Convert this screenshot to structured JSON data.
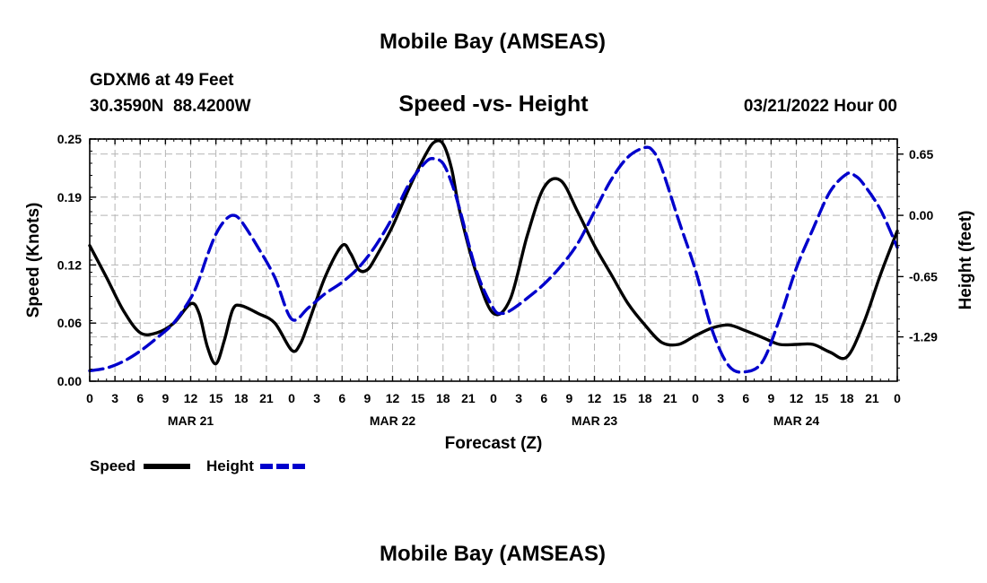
{
  "page": {
    "title": "Mobile Bay (AMSEAS)",
    "station_line": "GDXM6 at 49 Feet",
    "coords_line": "30.3590N  88.4200W",
    "run_time": "03/21/2022 Hour 00",
    "footer_title": "Mobile Bay (AMSEAS)"
  },
  "colors": {
    "speed": "#000000",
    "height": "#0000cc",
    "grid": "#b4b4b4"
  },
  "chart_data": {
    "type": "line",
    "title": "Speed -vs- Height",
    "xlabel": "Forecast (Z)",
    "ylabel": "Speed (Knots)",
    "y2label": "Height (feet)",
    "xlim": [
      0,
      96
    ],
    "ylim": [
      0,
      0.25
    ],
    "y2lim": [
      -1.76,
      0.81
    ],
    "x_ticks": [
      0,
      3,
      6,
      9,
      12,
      15,
      18,
      21,
      24,
      27,
      30,
      33,
      36,
      39,
      42,
      45,
      48,
      51,
      54,
      57,
      60,
      63,
      66,
      69,
      72,
      75,
      78,
      81,
      84,
      87,
      90,
      93,
      96
    ],
    "x_tick_labels": [
      "0",
      "3",
      "6",
      "9",
      "12",
      "15",
      "18",
      "21",
      "0",
      "3",
      "6",
      "9",
      "12",
      "15",
      "18",
      "21",
      "0",
      "3",
      "6",
      "9",
      "12",
      "15",
      "18",
      "21",
      "0",
      "3",
      "6",
      "9",
      "12",
      "15",
      "18",
      "21",
      "0"
    ],
    "day_labels": [
      {
        "x": 12,
        "label": "MAR 21"
      },
      {
        "x": 36,
        "label": "MAR 22"
      },
      {
        "x": 60,
        "label": "MAR 23"
      },
      {
        "x": 84,
        "label": "MAR 24"
      }
    ],
    "y_ticks": [
      0.0,
      0.06,
      0.12,
      0.19,
      0.25
    ],
    "y_tick_labels": [
      "0.00",
      "0.06",
      "0.12",
      "0.19",
      "0.25"
    ],
    "y2_ticks": [
      0.65,
      0.0,
      -0.65,
      -1.29
    ],
    "y2_tick_labels": [
      "0.65",
      "0.00",
      "-0.65",
      "-1.29"
    ],
    "series": [
      {
        "name": "Speed",
        "axis": "left",
        "style": "solid",
        "x": [
          0,
          2,
          4,
          6,
          8,
          10,
          12,
          13,
          14,
          15,
          16,
          17,
          18,
          20,
          22,
          24,
          25,
          26,
          28,
          30,
          31,
          32,
          33,
          34,
          36,
          38,
          40,
          41,
          42,
          43,
          44,
          46,
          48,
          50,
          52,
          54,
          56,
          58,
          60,
          62,
          64,
          66,
          68,
          70,
          72,
          74,
          76,
          78,
          80,
          82,
          84,
          86,
          88,
          90,
          92,
          94,
          96
        ],
        "values": [
          0.14,
          0.107,
          0.073,
          0.05,
          0.05,
          0.06,
          0.08,
          0.07,
          0.035,
          0.018,
          0.042,
          0.074,
          0.078,
          0.07,
          0.06,
          0.032,
          0.038,
          0.06,
          0.108,
          0.14,
          0.132,
          0.115,
          0.115,
          0.128,
          0.16,
          0.2,
          0.235,
          0.247,
          0.245,
          0.22,
          0.175,
          0.11,
          0.07,
          0.085,
          0.15,
          0.2,
          0.207,
          0.175,
          0.14,
          0.11,
          0.08,
          0.058,
          0.04,
          0.038,
          0.047,
          0.055,
          0.058,
          0.052,
          0.045,
          0.038,
          0.038,
          0.038,
          0.03,
          0.025,
          0.06,
          0.11,
          0.155
        ]
      },
      {
        "name": "Height",
        "axis": "right",
        "style": "dashed",
        "x": [
          0,
          2,
          4,
          6,
          8,
          10,
          12,
          13,
          14,
          15,
          16,
          17,
          18,
          20,
          22,
          24,
          26,
          28,
          30,
          32,
          34,
          36,
          38,
          40,
          41,
          42,
          43,
          44,
          46,
          48,
          49,
          50,
          52,
          54,
          56,
          58,
          60,
          62,
          64,
          66,
          67,
          68,
          70,
          72,
          74,
          76,
          78,
          80,
          82,
          84,
          86,
          88,
          90,
          91,
          92,
          94,
          96
        ],
        "values": [
          -1.65,
          -1.62,
          -1.55,
          -1.44,
          -1.3,
          -1.14,
          -0.88,
          -0.68,
          -0.42,
          -0.2,
          -0.06,
          0.0,
          -0.06,
          -0.34,
          -0.66,
          -1.1,
          -0.98,
          -0.83,
          -0.71,
          -0.55,
          -0.32,
          -0.02,
          0.34,
          0.57,
          0.6,
          0.55,
          0.35,
          0.06,
          -0.6,
          -0.99,
          -1.04,
          -1.01,
          -0.88,
          -0.73,
          -0.54,
          -0.3,
          0.04,
          0.38,
          0.62,
          0.72,
          0.68,
          0.5,
          -0.05,
          -0.58,
          -1.22,
          -1.6,
          -1.66,
          -1.55,
          -1.1,
          -0.56,
          -0.14,
          0.25,
          0.44,
          0.42,
          0.33,
          0.06,
          -0.34
        ]
      }
    ],
    "legend": [
      {
        "label": "Speed",
        "style": "solid"
      },
      {
        "label": "Height",
        "style": "dashed"
      }
    ]
  }
}
